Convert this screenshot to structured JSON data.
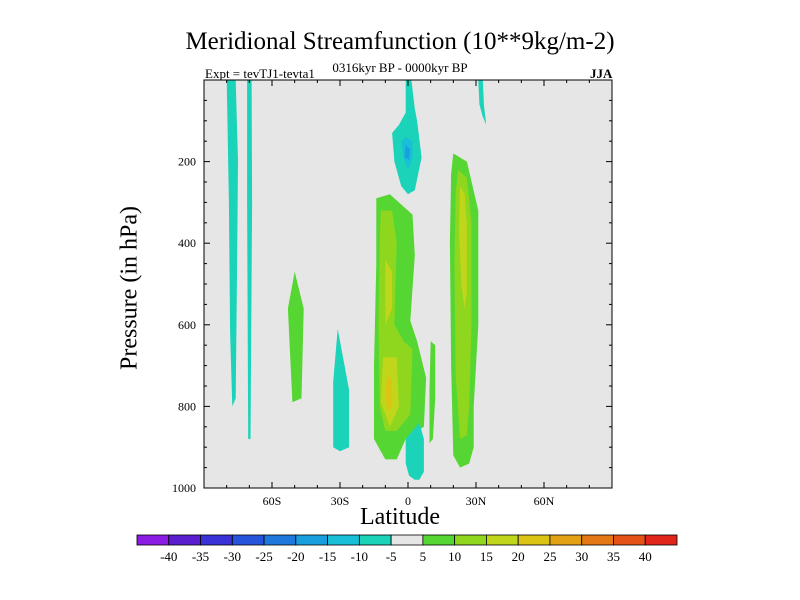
{
  "chart_data": {
    "type": "heatmap",
    "title": "Meridional Streamfunction (10**9kg/m-2)",
    "subtitle": "0316kyr BP - 0000kyr BP",
    "experiment": "Expt = tevTJ1-tevta1",
    "season": "JJA",
    "xlabel": "Latitude",
    "ylabel": "Pressure (in hPa)",
    "xlim": [
      -90,
      90
    ],
    "ylim": [
      1000,
      0
    ],
    "x_ticks": [
      -60,
      -30,
      0,
      30,
      60
    ],
    "x_tick_labels": [
      "60S",
      "30S",
      "0",
      "30N",
      "60N"
    ],
    "y_ticks": [
      200,
      400,
      600,
      800,
      1000
    ],
    "y_tick_labels": [
      "200",
      "400",
      "600",
      "800",
      "1000"
    ],
    "background_color": "#e6e6e6",
    "colorbar": {
      "labels": [
        "-40",
        "-35",
        "-30",
        "-25",
        "-20",
        "-15",
        "-10",
        "-5",
        "5",
        "10",
        "15",
        "20",
        "25",
        "30",
        "35",
        "40"
      ],
      "colors": [
        "#8a1ce3",
        "#5b1ecf",
        "#3a31d6",
        "#2655dc",
        "#1f78db",
        "#1a9fde",
        "#18bfd6",
        "#1bd3b8",
        "#e6e6e6",
        "#55d633",
        "#8fd61f",
        "#c0d61a",
        "#dcc414",
        "#e3a215",
        "#e47815",
        "#e45218",
        "#e0261b"
      ]
    },
    "regions": [
      {
        "level": "-5",
        "color": "#1bd3b8",
        "points": [
          [
            -80,
            0
          ],
          [
            -76,
            0
          ],
          [
            -75,
            200
          ],
          [
            -75.5,
            500
          ],
          [
            -76,
            780
          ],
          [
            -77.5,
            800
          ],
          [
            -78.5,
            620
          ],
          [
            -79,
            300
          ]
        ]
      },
      {
        "level": "-5",
        "color": "#1bd3b8",
        "points": [
          [
            -71,
            0
          ],
          [
            -69,
            0
          ],
          [
            -68.8,
            300
          ],
          [
            -69.5,
            880
          ],
          [
            -70.5,
            880
          ],
          [
            -71,
            300
          ]
        ]
      },
      {
        "level": "5",
        "color": "#55d633",
        "points": [
          [
            -50,
            470
          ],
          [
            -46,
            560
          ],
          [
            -47,
            780
          ],
          [
            -51,
            790
          ],
          [
            -53,
            560
          ]
        ]
      },
      {
        "level": "-5",
        "color": "#1bd3b8",
        "points": [
          [
            -31,
            610
          ],
          [
            -26,
            760
          ],
          [
            -26,
            900
          ],
          [
            -30,
            910
          ],
          [
            -33,
            900
          ],
          [
            -33,
            740
          ]
        ]
      },
      {
        "level": "-5",
        "color": "#1bd3b8",
        "points": [
          [
            -1,
            0
          ],
          [
            1.5,
            0
          ],
          [
            3,
            70
          ],
          [
            4,
            100
          ],
          [
            6,
            190
          ],
          [
            3,
            270
          ],
          [
            0,
            280
          ],
          [
            -3,
            260
          ],
          [
            -6,
            200
          ],
          [
            -7,
            130
          ],
          [
            -4,
            110
          ],
          [
            -1,
            80
          ]
        ]
      },
      {
        "level": "-10",
        "color": "#18bfd6",
        "points": [
          [
            -1,
            140
          ],
          [
            2,
            150
          ],
          [
            2,
            190
          ],
          [
            0,
            220
          ],
          [
            -2,
            190
          ],
          [
            -3,
            150
          ]
        ]
      },
      {
        "level": "-15",
        "color": "#1a9fde",
        "points": [
          [
            -1,
            160
          ],
          [
            1,
            170
          ],
          [
            0.5,
            195
          ],
          [
            -1.5,
            190
          ]
        ]
      },
      {
        "level": "5",
        "color": "#55d633",
        "points": [
          [
            -14,
            290
          ],
          [
            -8,
            280
          ],
          [
            -4,
            300
          ],
          [
            2,
            330
          ],
          [
            3,
            430
          ],
          [
            1,
            590
          ],
          [
            4,
            640
          ],
          [
            8,
            730
          ],
          [
            7,
            850
          ],
          [
            -1,
            880
          ],
          [
            -5,
            930
          ],
          [
            -10,
            930
          ],
          [
            -15,
            880
          ],
          [
            -15,
            700
          ],
          [
            -14,
            450
          ]
        ]
      },
      {
        "level": "10",
        "color": "#8fd61f",
        "points": [
          [
            -12,
            320
          ],
          [
            -7,
            320
          ],
          [
            -5,
            400
          ],
          [
            -6,
            600
          ],
          [
            -2,
            640
          ],
          [
            2,
            660
          ],
          [
            1,
            820
          ],
          [
            -5,
            860
          ],
          [
            -10,
            860
          ],
          [
            -12.5,
            800
          ],
          [
            -13,
            600
          ],
          [
            -12.5,
            400
          ]
        ]
      },
      {
        "level": "15",
        "color": "#c0d61a",
        "points": [
          [
            -10,
            440
          ],
          [
            -7,
            470
          ],
          [
            -7,
            560
          ],
          [
            -10,
            600
          ]
        ]
      },
      {
        "level": "15",
        "color": "#c0d61a",
        "points": [
          [
            -11,
            680
          ],
          [
            -5,
            680
          ],
          [
            -4,
            800
          ],
          [
            -8,
            850
          ],
          [
            -12,
            790
          ]
        ]
      },
      {
        "level": "20",
        "color": "#dcc414",
        "points": [
          [
            -9,
            720
          ],
          [
            -7,
            740
          ],
          [
            -7,
            800
          ],
          [
            -9,
            810
          ],
          [
            -10,
            770
          ]
        ]
      },
      {
        "level": "-5",
        "color": "#1bd3b8",
        "points": [
          [
            -1,
            880
          ],
          [
            5,
            840
          ],
          [
            7,
            880
          ],
          [
            7,
            960
          ],
          [
            5,
            980
          ],
          [
            3,
            980
          ],
          [
            0.5,
            970
          ],
          [
            -1,
            940
          ]
        ]
      },
      {
        "level": "5",
        "color": "#55d633",
        "points": [
          [
            10,
            640
          ],
          [
            12,
            650
          ],
          [
            12,
            780
          ],
          [
            11,
            880
          ],
          [
            9.5,
            890
          ],
          [
            9.5,
            760
          ]
        ]
      },
      {
        "level": "5",
        "color": "#55d633",
        "points": [
          [
            20,
            180
          ],
          [
            26,
            200
          ],
          [
            31,
            320
          ],
          [
            31,
            600
          ],
          [
            29,
            800
          ],
          [
            29,
            900
          ],
          [
            27,
            940
          ],
          [
            23,
            950
          ],
          [
            20,
            920
          ],
          [
            19,
            700
          ],
          [
            18.5,
            400
          ],
          [
            19,
            230
          ]
        ]
      },
      {
        "level": "10",
        "color": "#8fd61f",
        "points": [
          [
            22,
            220
          ],
          [
            26,
            240
          ],
          [
            28,
            350
          ],
          [
            28,
            600
          ],
          [
            27,
            800
          ],
          [
            26,
            870
          ],
          [
            23,
            880
          ],
          [
            21,
            720
          ],
          [
            20.5,
            450
          ],
          [
            21,
            280
          ]
        ]
      },
      {
        "level": "15",
        "color": "#c0d61a",
        "points": [
          [
            23,
            260
          ],
          [
            25,
            280
          ],
          [
            26,
            360
          ],
          [
            26,
            520
          ],
          [
            25,
            560
          ],
          [
            23.5,
            500
          ],
          [
            22.5,
            370
          ]
        ]
      },
      {
        "level": "-5",
        "color": "#1bd3b8",
        "points": [
          [
            31,
            0
          ],
          [
            33,
            0
          ],
          [
            33.5,
            60
          ],
          [
            34.5,
            110
          ],
          [
            33,
            90
          ],
          [
            31.5,
            60
          ]
        ]
      }
    ]
  }
}
